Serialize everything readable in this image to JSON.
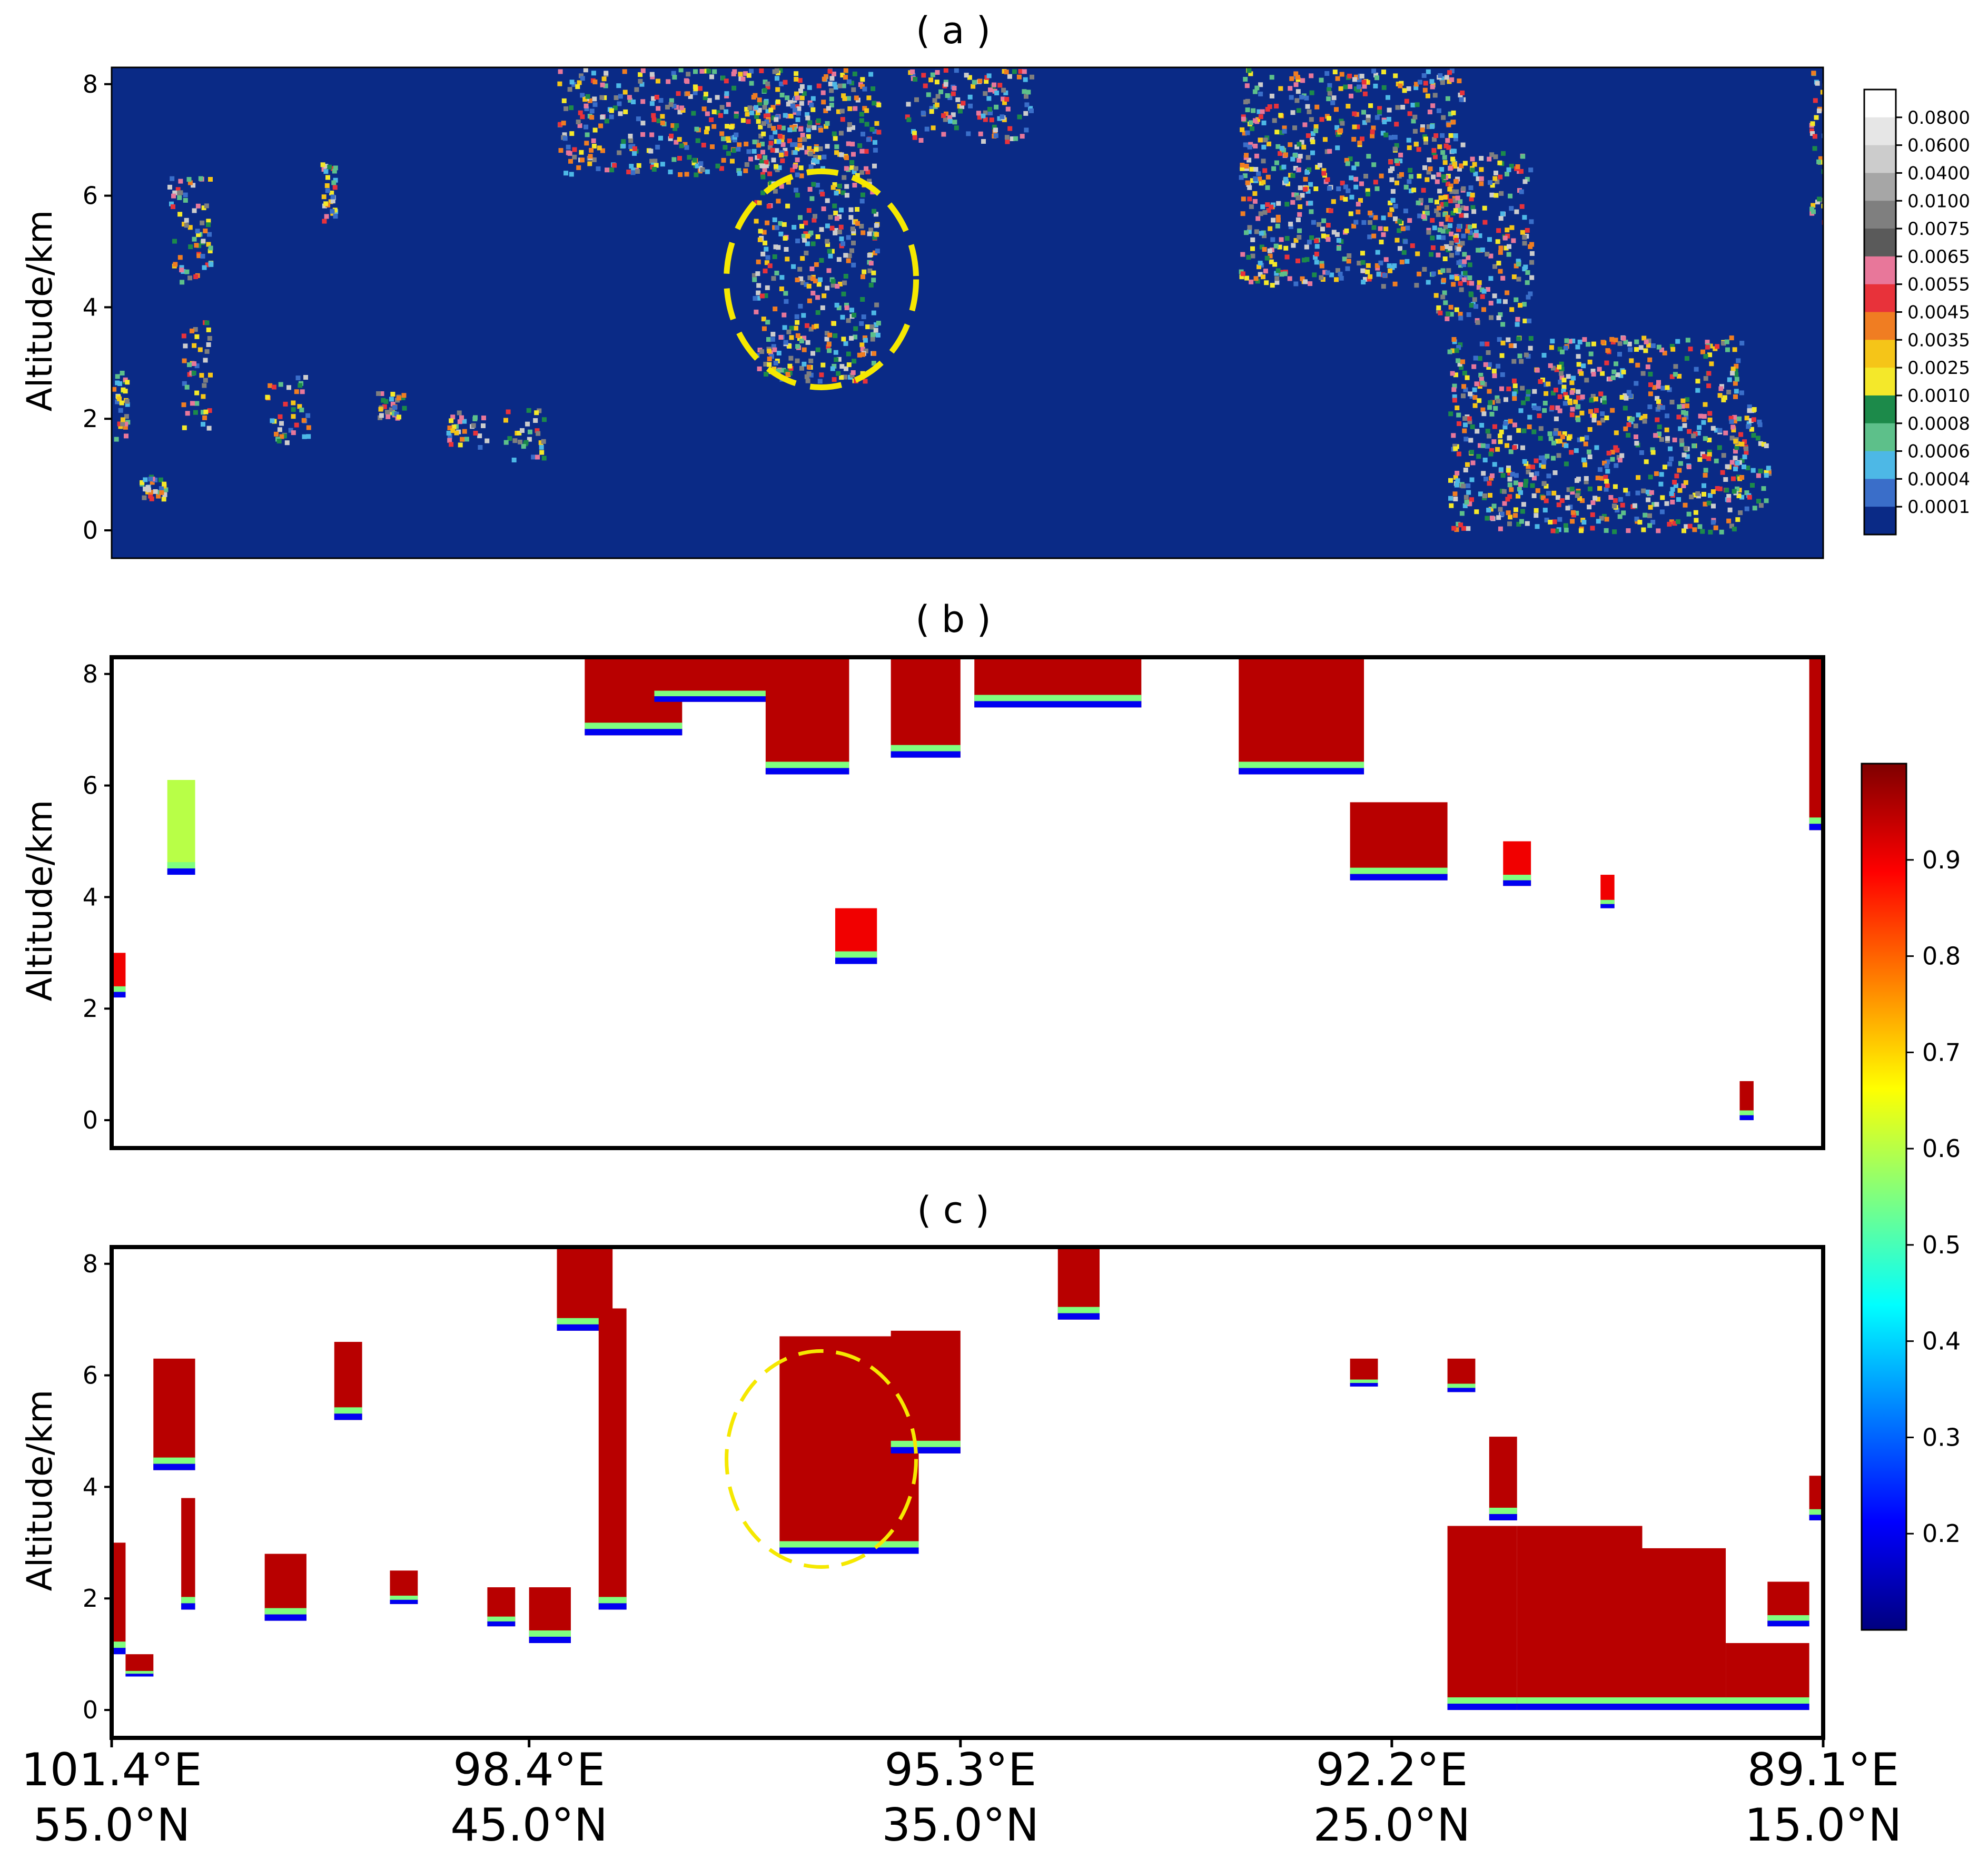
{
  "chart_data": [
    {
      "type": "heatmap",
      "panel_label": "( a )",
      "ylabel": "Altitude/km",
      "yticks": [
        "0",
        "2",
        "4",
        "6",
        "8"
      ],
      "ylim": [
        -0.5,
        8.3
      ],
      "background_color": "#0a2a86",
      "annotation": "dashed yellow ellipse around the cloud near 96.3°E, 2.5–6.5 km",
      "colorbar": {
        "scale": "discrete",
        "ticks": [
          "0.0800",
          "0.0600",
          "0.0400",
          "0.0100",
          "0.0075",
          "0.0065",
          "0.0055",
          "0.0045",
          "0.0035",
          "0.0025",
          "0.0010",
          "0.0008",
          "0.0006",
          "0.0004",
          "0.0001"
        ],
        "colors": [
          "#ffffff",
          "#e6e6e6",
          "#cccccc",
          "#a6a6a6",
          "#7f7f7f",
          "#5a5a5a",
          "#e8779a",
          "#e8323a",
          "#f07d22",
          "#f5c518",
          "#f4e82a",
          "#1c8a4a",
          "#5dc08a",
          "#4db8e6",
          "#3a6ec9",
          "#0a2a86"
        ]
      },
      "cloud_regions": [
        {
          "x": [
            101.4,
            101.3
          ],
          "alt": [
            1.5,
            3.0
          ]
        },
        {
          "x": [
            101.2,
            101.0
          ],
          "alt": [
            0.6,
            1.0
          ]
        },
        {
          "x": [
            101.0,
            100.7
          ],
          "alt": [
            4.4,
            6.4
          ]
        },
        {
          "x": [
            100.9,
            100.7
          ],
          "alt": [
            1.8,
            3.8
          ]
        },
        {
          "x": [
            100.3,
            100.0
          ],
          "alt": [
            1.6,
            2.8
          ]
        },
        {
          "x": [
            99.9,
            99.8
          ],
          "alt": [
            5.5,
            6.6
          ]
        },
        {
          "x": [
            99.5,
            99.3
          ],
          "alt": [
            2.0,
            2.5
          ]
        },
        {
          "x": [
            99.0,
            98.7
          ],
          "alt": [
            1.5,
            2.2
          ]
        },
        {
          "x": [
            98.6,
            98.3
          ],
          "alt": [
            1.3,
            2.2
          ]
        },
        {
          "x": [
            98.2,
            96.4
          ],
          "alt": [
            6.4,
            8.3
          ]
        },
        {
          "x": [
            96.8,
            95.9
          ],
          "alt": [
            2.7,
            8.3
          ]
        },
        {
          "x": [
            95.7,
            94.8
          ],
          "alt": [
            7.0,
            8.3
          ]
        },
        {
          "x": [
            93.3,
            91.7
          ],
          "alt": [
            4.4,
            8.3
          ]
        },
        {
          "x": [
            91.9,
            91.2
          ],
          "alt": [
            3.7,
            6.8
          ]
        },
        {
          "x": [
            91.8,
            89.7
          ],
          "alt": [
            0.0,
            3.5
          ]
        },
        {
          "x": [
            89.8,
            89.5
          ],
          "alt": [
            0.4,
            2.3
          ]
        },
        {
          "x": [
            89.2,
            89.1
          ],
          "alt": [
            5.5,
            8.3
          ]
        }
      ]
    },
    {
      "type": "heatmap",
      "panel_label": "( b )",
      "ylabel": "Altitude/km",
      "yticks": [
        "0",
        "2",
        "4",
        "6",
        "8"
      ],
      "ylim": [
        -0.5,
        8.3
      ],
      "colorbar": {
        "scale": "continuous",
        "range": [
          0.1,
          1.0
        ],
        "ticks": [
          "0.9",
          "0.8",
          "0.7",
          "0.6",
          "0.5",
          "0.4",
          "0.3",
          "0.2"
        ],
        "colors": [
          "#00007f",
          "#0000ff",
          "#007fff",
          "#00ffff",
          "#7fff7f",
          "#ffff00",
          "#ff7f00",
          "#ff0000",
          "#7f0000"
        ]
      },
      "cloud_regions": [
        {
          "x": [
            101.4,
            101.3
          ],
          "alt": [
            2.2,
            3.0
          ],
          "value": 0.9
        },
        {
          "x": [
            101.0,
            100.8
          ],
          "alt": [
            4.4,
            6.1
          ],
          "value": 0.6
        },
        {
          "x": [
            98.0,
            97.3
          ],
          "alt": [
            6.9,
            8.3
          ],
          "value": 0.95
        },
        {
          "x": [
            97.5,
            96.6
          ],
          "alt": [
            7.5,
            8.3
          ],
          "value": 0.95
        },
        {
          "x": [
            96.7,
            96.1
          ],
          "alt": [
            6.2,
            8.3
          ],
          "value": 0.95
        },
        {
          "x": [
            96.2,
            95.9
          ],
          "alt": [
            2.8,
            3.8
          ],
          "value": 0.9
        },
        {
          "x": [
            95.8,
            95.3
          ],
          "alt": [
            6.5,
            8.3
          ],
          "value": 0.95
        },
        {
          "x": [
            95.2,
            94.0
          ],
          "alt": [
            7.4,
            8.3
          ],
          "value": 0.95
        },
        {
          "x": [
            93.3,
            92.4
          ],
          "alt": [
            6.2,
            8.3
          ],
          "value": 0.95
        },
        {
          "x": [
            92.5,
            91.8
          ],
          "alt": [
            4.3,
            5.7
          ],
          "value": 0.95
        },
        {
          "x": [
            91.4,
            91.2
          ],
          "alt": [
            4.2,
            5.0
          ],
          "value": 0.9
        },
        {
          "x": [
            90.7,
            90.6
          ],
          "alt": [
            3.8,
            4.4
          ],
          "value": 0.9
        },
        {
          "x": [
            89.7,
            89.6
          ],
          "alt": [
            0.0,
            0.7
          ],
          "value": 0.95
        },
        {
          "x": [
            89.2,
            89.1
          ],
          "alt": [
            5.2,
            8.3
          ],
          "value": 0.95
        }
      ]
    },
    {
      "type": "heatmap",
      "panel_label": "( c )",
      "ylabel": "Altitude/km",
      "yticks": [
        "0",
        "2",
        "4",
        "6",
        "8"
      ],
      "ylim": [
        -0.5,
        8.3
      ],
      "xticks": [
        {
          "lon": "101.4°E",
          "lat": "55.0°N"
        },
        {
          "lon": "98.4°E",
          "lat": "45.0°N"
        },
        {
          "lon": "95.3°E",
          "lat": "35.0°N"
        },
        {
          "lon": "92.2°E",
          "lat": "25.0°N"
        },
        {
          "lon": "89.1°E",
          "lat": "15.0°N"
        }
      ],
      "annotation": "dashed yellow ellipse around the cloud near 96.3°E, 2.5–6.5 km",
      "cloud_regions": [
        {
          "x": [
            101.4,
            101.3
          ],
          "alt": [
            1.0,
            3.0
          ],
          "value": 0.95
        },
        {
          "x": [
            101.3,
            101.1
          ],
          "alt": [
            0.6,
            1.0
          ],
          "value": 0.95
        },
        {
          "x": [
            101.1,
            100.8
          ],
          "alt": [
            4.3,
            6.3
          ],
          "value": 0.95
        },
        {
          "x": [
            100.9,
            100.8
          ],
          "alt": [
            1.8,
            3.8
          ],
          "value": 0.95
        },
        {
          "x": [
            100.3,
            100.0
          ],
          "alt": [
            1.6,
            2.8
          ],
          "value": 0.95
        },
        {
          "x": [
            99.8,
            99.6
          ],
          "alt": [
            5.2,
            6.6
          ],
          "value": 0.95
        },
        {
          "x": [
            99.4,
            99.2
          ],
          "alt": [
            1.9,
            2.5
          ],
          "value": 0.95
        },
        {
          "x": [
            98.7,
            98.5
          ],
          "alt": [
            1.5,
            2.2
          ],
          "value": 0.95
        },
        {
          "x": [
            98.4,
            98.1
          ],
          "alt": [
            1.2,
            2.2
          ],
          "value": 0.95
        },
        {
          "x": [
            98.2,
            97.8
          ],
          "alt": [
            6.8,
            8.3
          ],
          "value": 0.95
        },
        {
          "x": [
            97.9,
            97.7
          ],
          "alt": [
            1.8,
            7.2
          ],
          "value": 0.95
        },
        {
          "x": [
            96.6,
            95.6
          ],
          "alt": [
            2.8,
            6.7
          ],
          "value": 0.95
        },
        {
          "x": [
            95.8,
            95.3
          ],
          "alt": [
            4.6,
            6.8
          ],
          "value": 0.95
        },
        {
          "x": [
            94.6,
            94.3
          ],
          "alt": [
            7.0,
            8.3
          ],
          "value": 0.95
        },
        {
          "x": [
            92.5,
            92.3
          ],
          "alt": [
            5.8,
            6.3
          ],
          "value": 0.95
        },
        {
          "x": [
            91.8,
            91.6
          ],
          "alt": [
            5.7,
            6.3
          ],
          "value": 0.95
        },
        {
          "x": [
            91.8,
            91.3
          ],
          "alt": [
            0.0,
            3.3
          ],
          "value": 0.95
        },
        {
          "x": [
            91.5,
            91.3
          ],
          "alt": [
            3.4,
            4.9
          ],
          "value": 0.95
        },
        {
          "x": [
            91.3,
            90.4
          ],
          "alt": [
            0.0,
            3.3
          ],
          "value": 0.95
        },
        {
          "x": [
            90.4,
            89.8
          ],
          "alt": [
            0.0,
            2.9
          ],
          "value": 0.95
        },
        {
          "x": [
            89.8,
            89.2
          ],
          "alt": [
            0.0,
            1.2
          ],
          "value": 0.95
        },
        {
          "x": [
            89.5,
            89.2
          ],
          "alt": [
            1.5,
            2.3
          ],
          "value": 0.95
        },
        {
          "x": [
            89.2,
            89.1
          ],
          "alt": [
            3.4,
            4.2
          ],
          "value": 0.95
        }
      ]
    }
  ]
}
